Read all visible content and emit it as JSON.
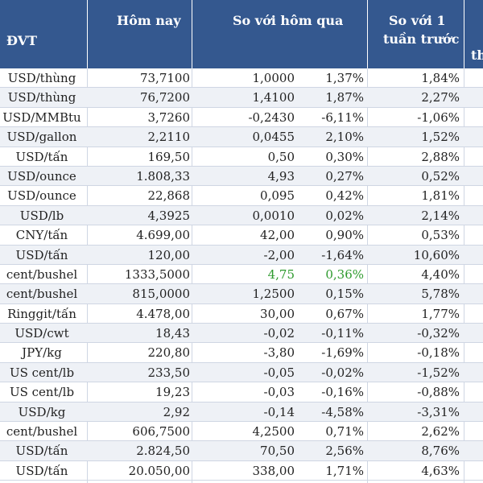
{
  "header": {
    "unit": "ĐVT",
    "today": "Hôm nay",
    "vs_yesterday": "So với hôm qua",
    "vs_week_1": "So với 1",
    "vs_week_2": "tuần trước",
    "vs_month_partial": "th"
  },
  "rows": [
    {
      "unit": "USD/thùng",
      "today": "73,7100",
      "diff": "1,0000",
      "pct": "1,37%",
      "week": "1,84%"
    },
    {
      "unit": "USD/thùng",
      "today": "76,7200",
      "diff": "1,4100",
      "pct": "1,87%",
      "week": "2,27%"
    },
    {
      "unit": "USD/MMBtu",
      "today": "3,7260",
      "diff": "-0,2430",
      "pct": "-6,11%",
      "week": "-1,06%"
    },
    {
      "unit": "USD/gallon",
      "today": "2,2110",
      "diff": "0,0455",
      "pct": "2,10%",
      "week": "1,52%"
    },
    {
      "unit": "USD/tấn",
      "today": "169,50",
      "diff": "0,50",
      "pct": "0,30%",
      "week": "2,88%"
    },
    {
      "unit": "USD/ounce",
      "today": "1.808,33",
      "diff": "4,93",
      "pct": "0,27%",
      "week": "0,52%"
    },
    {
      "unit": "USD/ounce",
      "today": "22,868",
      "diff": "0,095",
      "pct": "0,42%",
      "week": "1,81%"
    },
    {
      "unit": "USD/lb",
      "today": "4,3925",
      "diff": "0,0010",
      "pct": "0,02%",
      "week": "2,14%"
    },
    {
      "unit": "CNY/tấn",
      "today": "4.699,00",
      "diff": "42,00",
      "pct": "0,90%",
      "week": "0,53%"
    },
    {
      "unit": "USD/tấn",
      "today": "120,00",
      "diff": "-2,00",
      "pct": "-1,64%",
      "week": "10,60%"
    },
    {
      "unit": "cent/bushel",
      "today": "1333,5000",
      "diff": "4,75",
      "pct": "0,36%",
      "week": "4,40%",
      "highlight": true
    },
    {
      "unit": "cent/bushel",
      "today": "815,0000",
      "diff": "1,2500",
      "pct": "0,15%",
      "week": "5,78%"
    },
    {
      "unit": "Ringgit/tấn",
      "today": "4.478,00",
      "diff": "30,00",
      "pct": "0,67%",
      "week": "1,77%"
    },
    {
      "unit": "USD/cwt",
      "today": "18,43",
      "diff": "-0,02",
      "pct": "-0,11%",
      "week": "-0,32%"
    },
    {
      "unit": "JPY/kg",
      "today": "220,80",
      "diff": "-3,80",
      "pct": "-1,69%",
      "week": "-0,18%"
    },
    {
      "unit": "US cent/lb",
      "today": "233,50",
      "diff": "-0,05",
      "pct": "-0,02%",
      "week": "-1,52%"
    },
    {
      "unit": "US cent/lb",
      "today": "19,23",
      "diff": "-0,03",
      "pct": "-0,16%",
      "week": "-0,88%"
    },
    {
      "unit": "USD/kg",
      "today": "2,92",
      "diff": "-0,14",
      "pct": "-4,58%",
      "week": "-3,31%"
    },
    {
      "unit": "cent/bushel",
      "today": "606,7500",
      "diff": "4,2500",
      "pct": "0,71%",
      "week": "2,62%"
    },
    {
      "unit": "USD/tấn",
      "today": "2.824,50",
      "diff": "70,50",
      "pct": "2,56%",
      "week": "8,76%"
    },
    {
      "unit": "USD/tấn",
      "today": "20.050,00",
      "diff": "338,00",
      "pct": "1,71%",
      "week": "4,63%"
    }
  ]
}
